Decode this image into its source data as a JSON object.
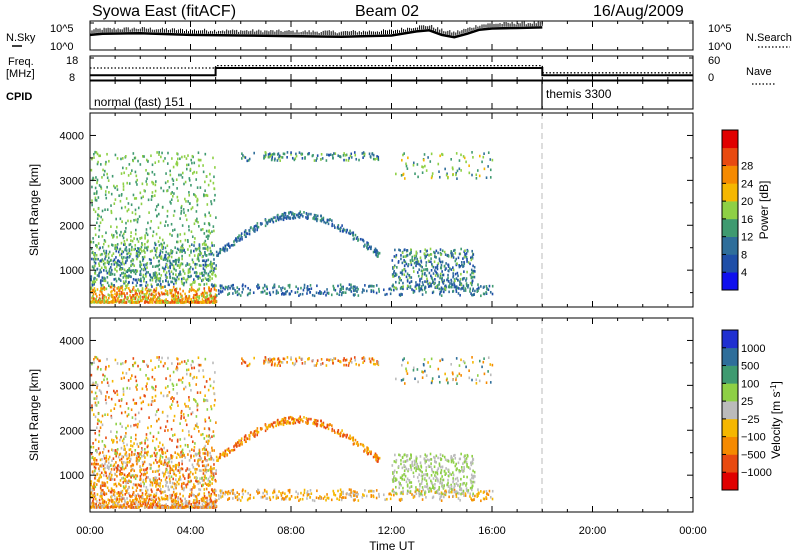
{
  "header": {
    "station": "Syowa East (fitACF)",
    "beam": "Beam 02",
    "date": "16/Aug/2009"
  },
  "noise_panel": {
    "left_label": "N.Sky",
    "right_label": "N.Search",
    "left_ticks": [
      "10^5",
      "10^0"
    ],
    "right_ticks": [
      "10^5",
      "10^0"
    ]
  },
  "freq_panel": {
    "left_label_1": "Freq.",
    "left_label_2": "[MHz]",
    "left_ticks": [
      "18",
      "8"
    ],
    "right_label": "Nave",
    "right_ticks": [
      "60",
      "0"
    ]
  },
  "cpid_panel": {
    "label": "CPID",
    "modes": [
      {
        "name": "normal (fast) 151",
        "start_hour": 0
      },
      {
        "name": "themis 3300",
        "start_hour": 18
      }
    ]
  },
  "time_axis": {
    "title": "Time UT",
    "range": [
      0,
      24
    ],
    "ticks": [
      {
        "hour": 0,
        "label": "00:00"
      },
      {
        "hour": 4,
        "label": "04:00"
      },
      {
        "hour": 8,
        "label": "08:00"
      },
      {
        "hour": 12,
        "label": "12:00"
      },
      {
        "hour": 16,
        "label": "16:00"
      },
      {
        "hour": 20,
        "label": "20:00"
      },
      {
        "hour": 24,
        "label": "00:00"
      }
    ]
  },
  "chart_data": [
    {
      "type": "line",
      "panel": "noise",
      "x_unit": "hour UT",
      "series": [
        {
          "x": [
            0,
            0.5,
            2,
            4,
            6,
            8,
            10,
            12,
            13,
            13.5,
            14,
            14.5,
            15,
            15.5,
            16,
            17,
            18
          ],
          "y": [
            2.6,
            2.8,
            2.9,
            2.6,
            2.5,
            2.4,
            2.3,
            2.5,
            3.2,
            3.4,
            2.6,
            2.2,
            2.8,
            3.5,
            3.7,
            3.8,
            3.9
          ]
        }
      ]
    },
    {
      "type": "line",
      "panel": "frequency",
      "x_unit": "hour UT",
      "ylim": [
        8,
        18
      ],
      "series": [
        {
          "x": [
            0,
            5,
            5,
            18,
            18,
            24
          ],
          "y": [
            10,
            10,
            13,
            13,
            10,
            10
          ]
        },
        {
          "x": [
            0,
            5,
            5,
            18,
            18,
            24
          ],
          "y": [
            13,
            13,
            14,
            14,
            11,
            11
          ]
        }
      ]
    },
    {
      "type": "heatmap",
      "panel": "power",
      "ylabel": "Slant Range [km]",
      "ylim": [
        180,
        4500
      ],
      "y_ticks": [
        1000,
        2000,
        3000,
        4000
      ],
      "colorbar_label": "Power [dB]",
      "colorbar_ticks": [
        4,
        8,
        12,
        16,
        20,
        24,
        28
      ],
      "colorbar_range": [
        0,
        32
      ],
      "colors": [
        "#1010ee",
        "#1f4fa8",
        "#2f6e9a",
        "#3f9a70",
        "#8ed045",
        "#f5b700",
        "#f58a00",
        "#e84a10",
        "#e00000"
      ]
    },
    {
      "type": "heatmap",
      "panel": "velocity",
      "ylabel": "Slant Range [km]",
      "ylim": [
        180,
        4500
      ],
      "y_ticks": [
        1000,
        2000,
        3000,
        4000
      ],
      "colorbar_label": "Velocity [m s^-1]",
      "colorbar_ticks": [
        "1000",
        "500",
        "100",
        "25",
        "−25",
        "−100",
        "−500",
        "−1000"
      ],
      "colors": [
        "#2030d0",
        "#2f6e9a",
        "#3f9a70",
        "#8ed045",
        "#bbbbbb",
        "#f5b700",
        "#f58a00",
        "#e84a10",
        "#e00000"
      ]
    }
  ]
}
